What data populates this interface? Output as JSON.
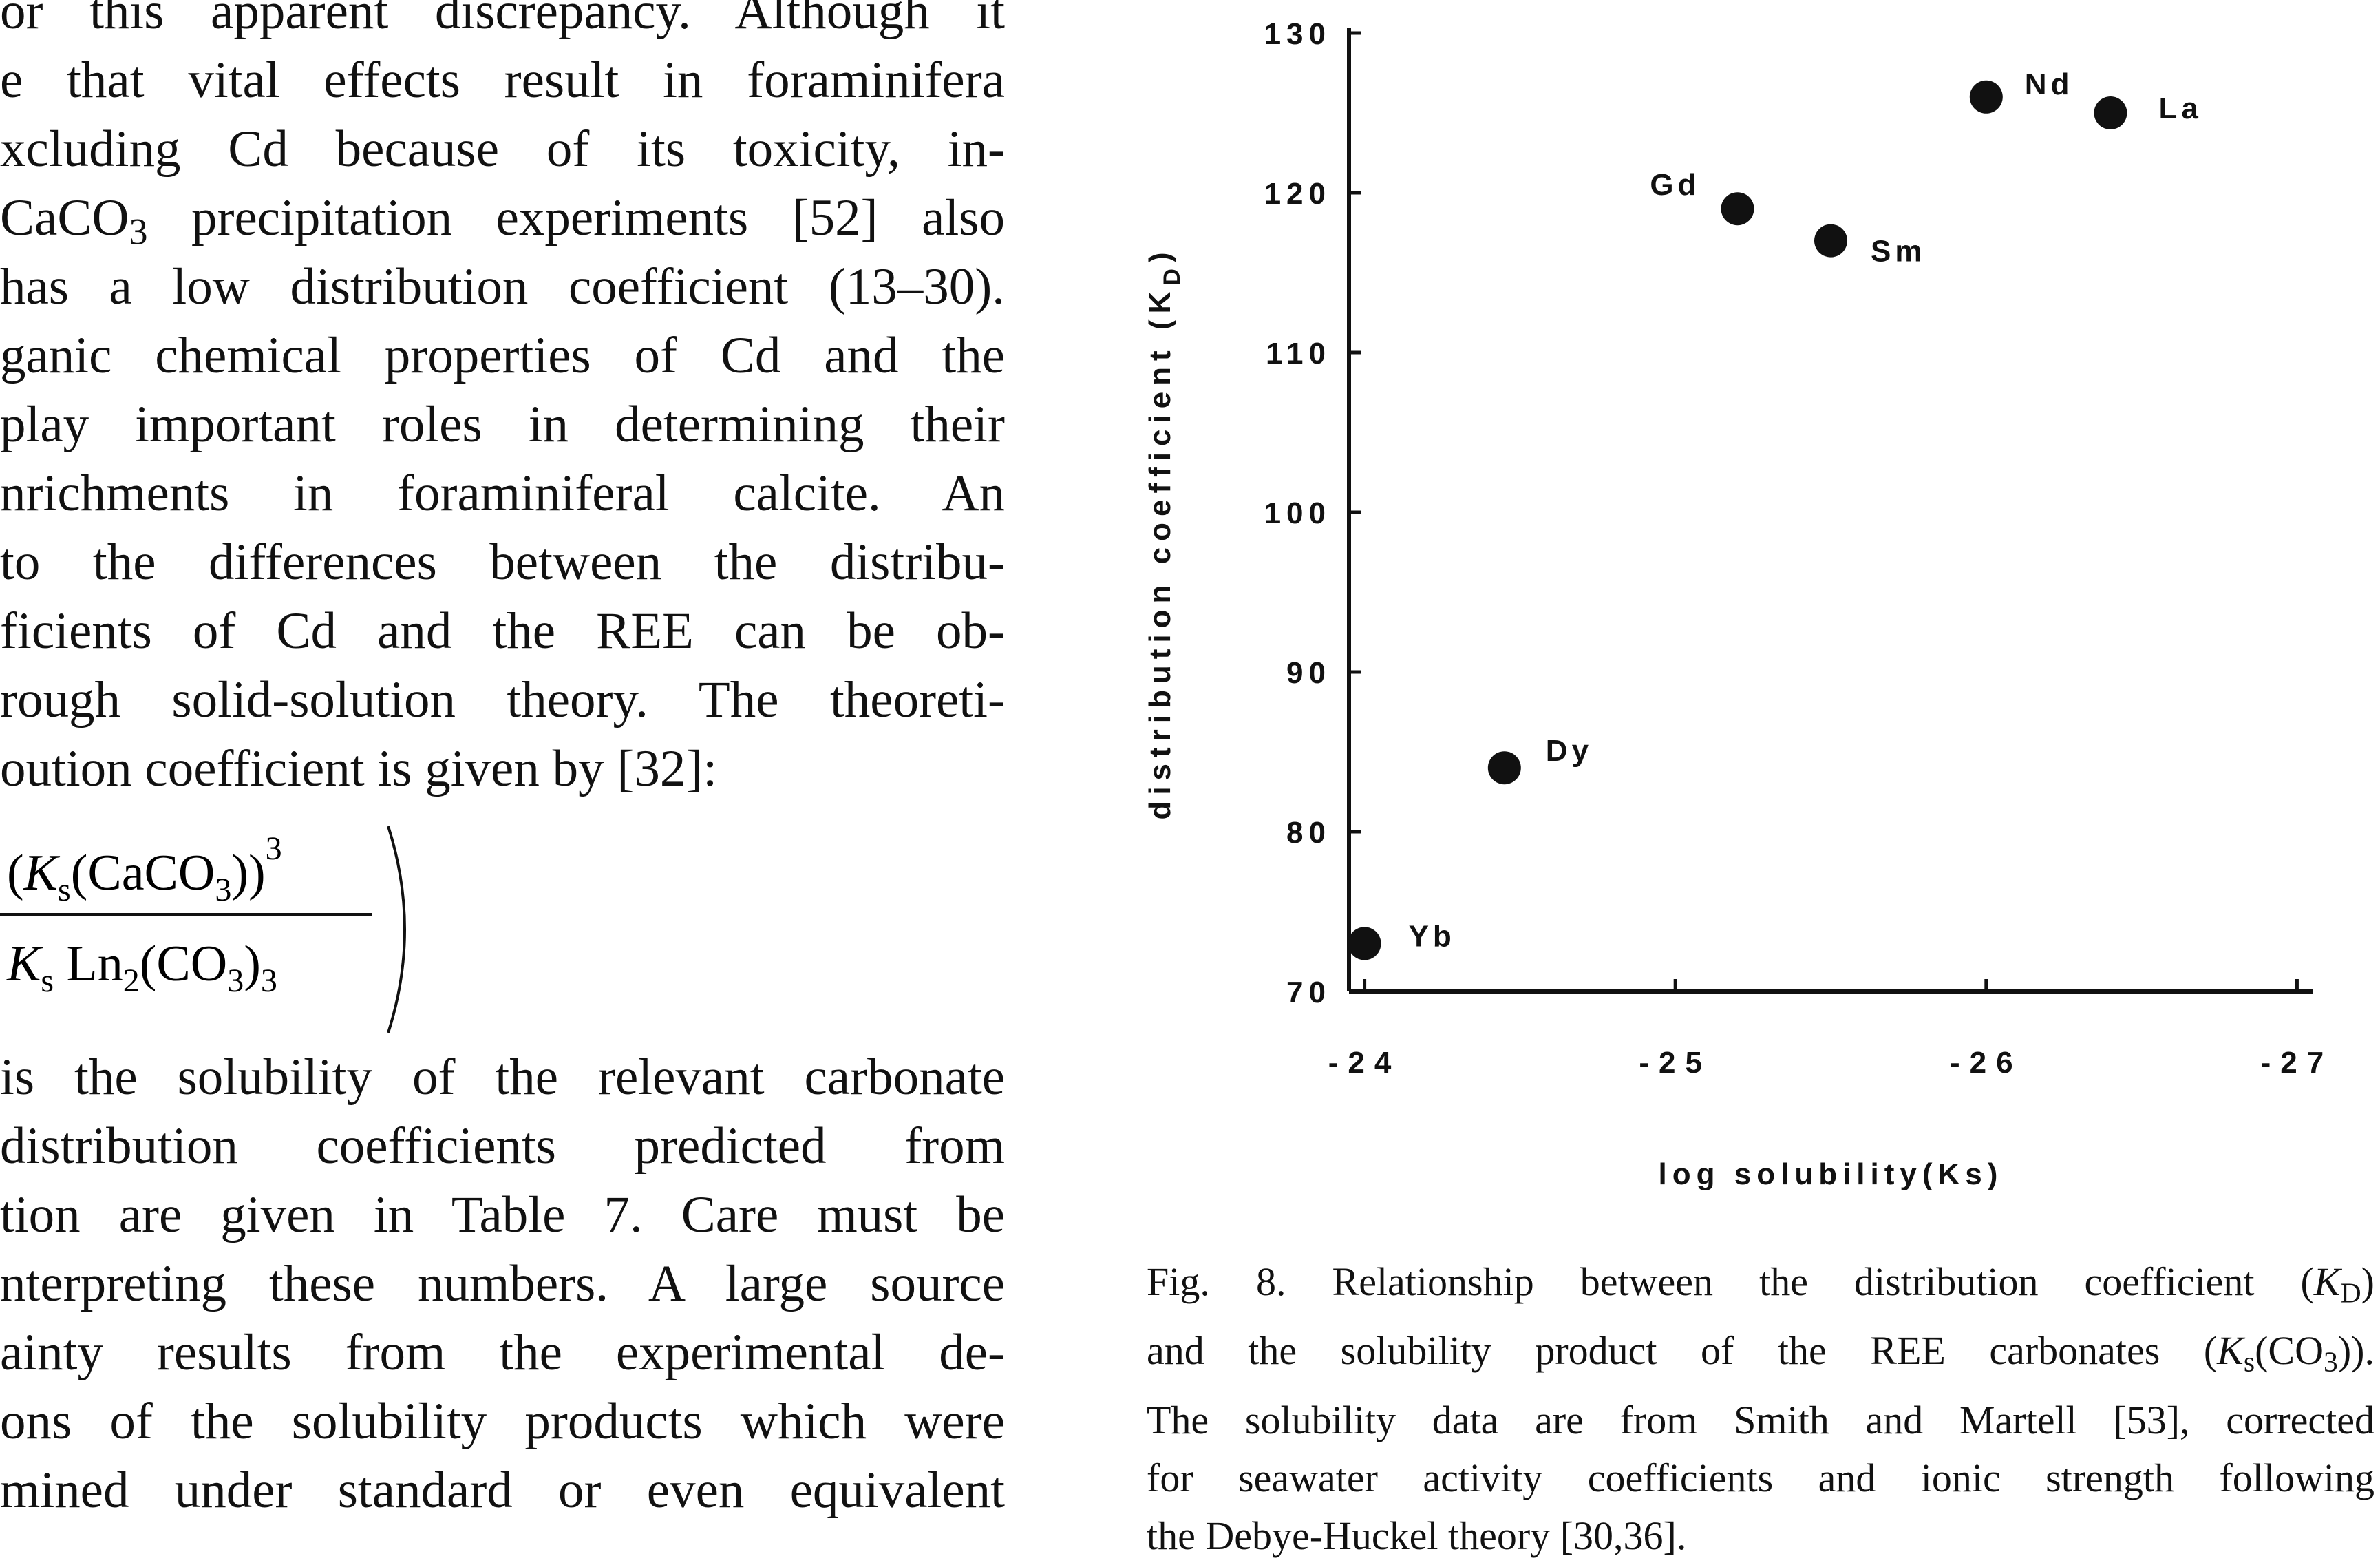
{
  "body_text": {
    "lines_top": [
      "or this apparent discrepancy. Although it",
      "e that vital effects result in foraminifera",
      "xcluding Cd because of its toxicity, in-",
      "",
      "has a low distribution coefficient (13–30).",
      "ganic chemical properties of Cd and the",
      " play important roles in determining their",
      "nrichments in foraminiferal calcite. An",
      "to the differences between the distribu-",
      "ficients of Cd and the REE can be ob-",
      "rough solid-solution theory. The theoreti-",
      "oution coefficient is given by [32]:"
    ],
    "line4_a": "CaCO",
    "line4_sub": "3",
    "line4_b": " precipitation experiments [52] also",
    "lines_bottom": [
      " is the solubility of the relevant carbonate",
      " distribution coefficients predicted from",
      "tion are given in Table 7. Care must be",
      "nterpreting these numbers. A large source",
      "ainty results from the experimental de-",
      "ons of the solubility products which were",
      "mined under standard or even equivalent"
    ]
  },
  "equation": {
    "numerator": "(K_s(CaCO_3))^3",
    "denominator": "K_s Ln_2(CO_3)_3"
  },
  "chart_data": {
    "type": "scatter",
    "xlabel": "log solubility(Ks)",
    "ylabel": "distribution coefficient (K_D)",
    "xlim": [
      -23.95,
      -27.05
    ],
    "ylim": [
      70,
      130
    ],
    "x_ticks": [
      -24,
      -25,
      -26,
      -27
    ],
    "x_tick_labels": [
      "-24",
      "-25",
      "-26",
      "-27"
    ],
    "y_ticks": [
      70,
      80,
      90,
      100,
      110,
      120,
      130
    ],
    "y_tick_labels": [
      "70",
      "80",
      "90",
      "100",
      "110",
      "120",
      "130"
    ],
    "grid": false,
    "points": [
      {
        "label": "Yb",
        "x": -24.0,
        "y": 73
      },
      {
        "label": "Dy",
        "x": -24.45,
        "y": 84
      },
      {
        "label": "Gd",
        "x": -25.2,
        "y": 119
      },
      {
        "label": "Sm",
        "x": -25.5,
        "y": 117
      },
      {
        "label": "Nd",
        "x": -26.0,
        "y": 126
      },
      {
        "label": "La",
        "x": -26.4,
        "y": 125
      }
    ]
  },
  "caption": {
    "line1_a": "Fig. 8. Relationship between the distribution coefficient (",
    "line1_k": "K",
    "line1_sub": "D",
    "line1_b": ")",
    "line2_a": "and the solubility product of the REE carbonates (",
    "line2_k": "K",
    "line2_sub": "s",
    "line2_b": "(CO",
    "line2_sub2": "3",
    "line2_c": ")).",
    "line3": "The solubility data are from Smith and Martell [53], corrected",
    "line4": "for seawater activity coefficients and ionic strength following",
    "line5": "the Debye-Huckel theory [30,36]."
  }
}
